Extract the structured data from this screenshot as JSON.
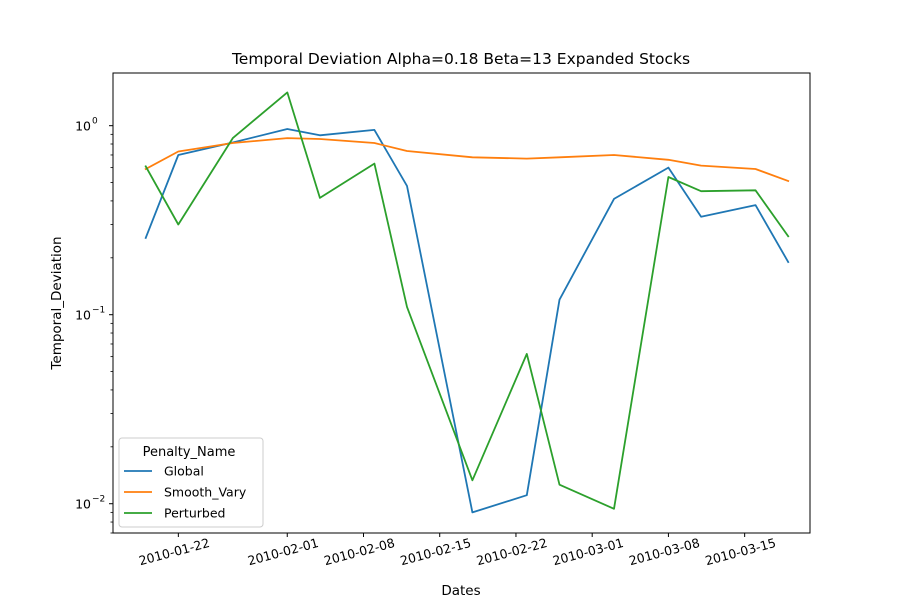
{
  "chart_data": {
    "type": "line",
    "title": "Temporal Deviation Alpha=0.18 Beta=13 Expanded Stocks",
    "xlabel": "Dates",
    "ylabel": "Temporal_Deviation",
    "yscale": "log",
    "ylim": [
      0.007,
      1.9
    ],
    "xlim": [
      "2010-01-16",
      "2010-03-21"
    ],
    "x_ticks": [
      "2010-01-22",
      "2010-02-01",
      "2010-02-08",
      "2010-02-15",
      "2010-02-22",
      "2010-03-01",
      "2010-03-08",
      "2010-03-15"
    ],
    "y_ticks": [
      {
        "value": 0.01,
        "base": "10",
        "exp": "−2"
      },
      {
        "value": 0.1,
        "base": "10",
        "exp": "−1"
      },
      {
        "value": 1,
        "base": "10",
        "exp": "0"
      }
    ],
    "x": [
      "2010-01-19",
      "2010-01-22",
      "2010-01-27",
      "2010-02-01",
      "2010-02-04",
      "2010-02-09",
      "2010-02-12",
      "2010-02-18",
      "2010-02-23",
      "2010-02-26",
      "2010-03-03",
      "2010-03-08",
      "2010-03-11",
      "2010-03-16",
      "2010-03-19"
    ],
    "series": [
      {
        "name": "Global",
        "color": "#1f77b4",
        "values": [
          0.255,
          0.7,
          0.815,
          0.96,
          0.89,
          0.95,
          0.48,
          0.009,
          0.0111,
          0.12,
          0.41,
          0.6,
          0.33,
          0.38,
          0.19
        ]
      },
      {
        "name": "Smooth_Vary",
        "color": "#ff7f0e",
        "values": [
          0.59,
          0.73,
          0.81,
          0.86,
          0.85,
          0.81,
          0.735,
          0.68,
          0.67,
          0.68,
          0.7,
          0.66,
          0.615,
          0.59,
          0.51
        ]
      },
      {
        "name": "Perturbed",
        "color": "#2ca02c",
        "values": [
          0.61,
          0.3,
          0.86,
          1.5,
          0.415,
          0.63,
          0.11,
          0.0133,
          0.062,
          0.0126,
          0.0094,
          0.535,
          0.45,
          0.455,
          0.26
        ]
      }
    ],
    "legend": {
      "title": "Penalty_Name",
      "placement": "lower-left"
    },
    "grid": false
  }
}
